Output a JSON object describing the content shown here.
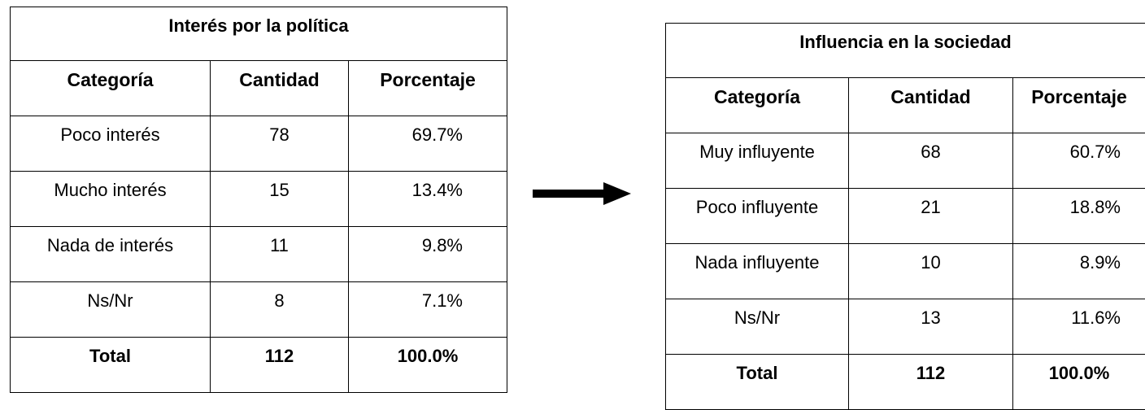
{
  "tables": [
    {
      "title": "Interés por la política",
      "header": [
        "Categoría",
        "Cantidad",
        "Porcentaje"
      ],
      "rows": [
        [
          "Poco interés",
          "78",
          "69.7%"
        ],
        [
          "Mucho interés",
          "15",
          "13.4%"
        ],
        [
          "Nada de interés",
          "11",
          "9.8%"
        ],
        [
          "Ns/Nr",
          "8",
          "7.1%"
        ]
      ],
      "total": [
        "Total",
        "112",
        "100.0%"
      ]
    },
    {
      "title": "Influencia en la sociedad",
      "header": [
        "Categoría",
        "Cantidad",
        "Porcentaje"
      ],
      "rows": [
        [
          "Muy influyente",
          "68",
          "60.7%"
        ],
        [
          "Poco influyente",
          "21",
          "18.8%"
        ],
        [
          "Nada influyente",
          "10",
          "8.9%"
        ],
        [
          "Ns/Nr",
          "13",
          "11.6%"
        ]
      ],
      "total": [
        "Total",
        "112",
        "100.0%"
      ]
    }
  ]
}
